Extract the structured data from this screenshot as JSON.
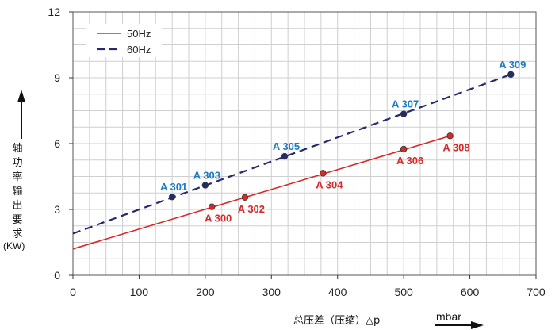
{
  "chart_data": {
    "type": "line",
    "xlabel": "总压差（压缩）△p",
    "xunit": "mbar",
    "ylabel": "轴功率输出要求",
    "yunit": "(KW)",
    "xlim": [
      0,
      700
    ],
    "ylim": [
      0,
      12
    ],
    "xticks": [
      0,
      100,
      200,
      300,
      400,
      500,
      600,
      700
    ],
    "yticks": [
      0,
      3,
      6,
      9,
      12
    ],
    "grid": true,
    "legend_position": "top-left",
    "series": [
      {
        "name": "50Hz",
        "color": "#d42a2a",
        "dash": "solid",
        "line": [
          [
            0,
            1.2
          ],
          [
            570,
            6.35
          ]
        ],
        "points": [
          {
            "label": "A 300",
            "x": 210,
            "y": 3.12
          },
          {
            "label": "A 302",
            "x": 260,
            "y": 3.55
          },
          {
            "label": "A 304",
            "x": 378,
            "y": 4.65
          },
          {
            "label": "A 306",
            "x": 500,
            "y": 5.75
          },
          {
            "label": "A 308",
            "x": 570,
            "y": 6.35
          }
        ]
      },
      {
        "name": "60Hz",
        "color": "#252a6e",
        "dash": "dashed",
        "line": [
          [
            0,
            1.9
          ],
          [
            662,
            9.15
          ]
        ],
        "points": [
          {
            "label": "A 301",
            "x": 150,
            "y": 3.57
          },
          {
            "label": "A 303",
            "x": 200,
            "y": 4.1
          },
          {
            "label": "A 305",
            "x": 320,
            "y": 5.42
          },
          {
            "label": "A 307",
            "x": 500,
            "y": 7.35
          },
          {
            "label": "A 309",
            "x": 662,
            "y": 9.15
          }
        ]
      }
    ],
    "label_colors": {
      "red": "#d42a2a",
      "blue": "#1a7cc4"
    }
  }
}
